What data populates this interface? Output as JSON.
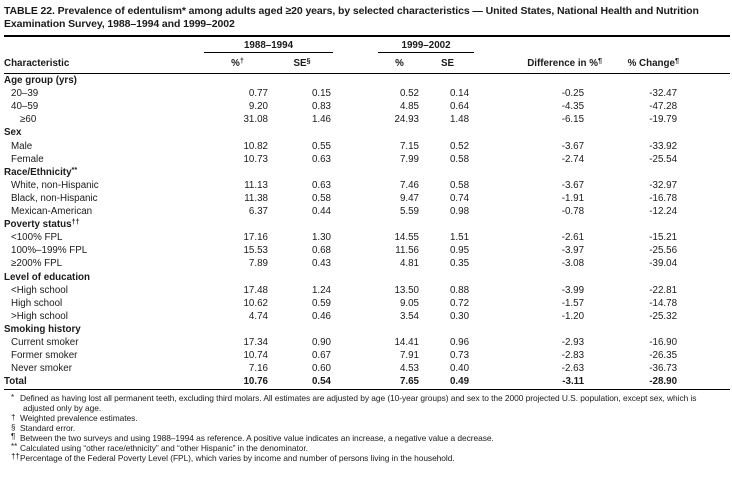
{
  "page": {
    "title": "TABLE 22. Prevalence of edentulism* among adults aged ≥20 years, by selected characteristics — United States, National Health and Nutrition Examination Survey, 1988–1994 and 1999–2002"
  },
  "colors": {
    "text": "#1b1b1b",
    "rules": "#000000",
    "background": "#ffffff"
  },
  "table": {
    "characteristic_header": "Characteristic",
    "col_groups": [
      {
        "label": "1988–1994"
      },
      {
        "label": "1999–2002"
      }
    ],
    "sub_headers": [
      {
        "text": "%",
        "sup": "†"
      },
      {
        "text": "SE",
        "sup": "§"
      },
      {
        "text": "%",
        "sup": ""
      },
      {
        "text": "SE",
        "sup": ""
      },
      {
        "text": "Difference in %",
        "sup": "¶"
      },
      {
        "text": "% Change",
        "sup": "¶"
      }
    ],
    "rows": [
      {
        "type": "section",
        "label": "Age group (yrs)",
        "sup": "",
        "indent": 0,
        "values": []
      },
      {
        "type": "data",
        "label": "20–39",
        "sup": "",
        "indent": 1,
        "values": [
          "0.77",
          "0.15",
          "0.52",
          "0.14",
          "-0.25",
          "-32.47"
        ]
      },
      {
        "type": "data",
        "label": "40–59",
        "sup": "",
        "indent": 1,
        "values": [
          "9.20",
          "0.83",
          "4.85",
          "0.64",
          "-4.35",
          "-47.28"
        ]
      },
      {
        "type": "data",
        "label": "≥60",
        "sup": "",
        "indent": 2,
        "values": [
          "31.08",
          "1.46",
          "24.93",
          "1.48",
          "-6.15",
          "-19.79"
        ]
      },
      {
        "type": "section",
        "label": "Sex",
        "sup": "",
        "indent": 0,
        "values": []
      },
      {
        "type": "data",
        "label": "Male",
        "sup": "",
        "indent": 1,
        "values": [
          "10.82",
          "0.55",
          "7.15",
          "0.52",
          "-3.67",
          "-33.92"
        ]
      },
      {
        "type": "data",
        "label": "Female",
        "sup": "",
        "indent": 1,
        "values": [
          "10.73",
          "0.63",
          "7.99",
          "0.58",
          "-2.74",
          "-25.54"
        ]
      },
      {
        "type": "section",
        "label": "Race/Ethnicity",
        "sup": "**",
        "indent": 0,
        "values": []
      },
      {
        "type": "data",
        "label": "White, non-Hispanic",
        "sup": "",
        "indent": 1,
        "values": [
          "11.13",
          "0.63",
          "7.46",
          "0.58",
          "-3.67",
          "-32.97"
        ]
      },
      {
        "type": "data",
        "label": "Black, non-Hispanic",
        "sup": "",
        "indent": 1,
        "values": [
          "11.38",
          "0.58",
          "9.47",
          "0.74",
          "-1.91",
          "-16.78"
        ]
      },
      {
        "type": "data",
        "label": "Mexican-American",
        "sup": "",
        "indent": 1,
        "values": [
          "6.37",
          "0.44",
          "5.59",
          "0.98",
          "-0.78",
          "-12.24"
        ]
      },
      {
        "type": "section",
        "label": "Poverty status",
        "sup": "††",
        "indent": 0,
        "values": []
      },
      {
        "type": "data",
        "label": "<100% FPL",
        "sup": "",
        "indent": 1,
        "values": [
          "17.16",
          "1.30",
          "14.55",
          "1.51",
          "-2.61",
          "-15.21"
        ]
      },
      {
        "type": "data",
        "label": "100%–199% FPL",
        "sup": "",
        "indent": 1,
        "values": [
          "15.53",
          "0.68",
          "11.56",
          "0.95",
          "-3.97",
          "-25.56"
        ]
      },
      {
        "type": "data",
        "label": "≥200% FPL",
        "sup": "",
        "indent": 1,
        "values": [
          "7.89",
          "0.43",
          "4.81",
          "0.35",
          "-3.08",
          "-39.04"
        ]
      },
      {
        "type": "section",
        "label": "Level of education",
        "sup": "",
        "indent": 0,
        "values": []
      },
      {
        "type": "data",
        "label": "<High school",
        "sup": "",
        "indent": 1,
        "values": [
          "17.48",
          "1.24",
          "13.50",
          "0.88",
          "-3.99",
          "-22.81"
        ]
      },
      {
        "type": "data",
        "label": "High school",
        "sup": "",
        "indent": 1,
        "values": [
          "10.62",
          "0.59",
          "9.05",
          "0.72",
          "-1.57",
          "-14.78"
        ]
      },
      {
        "type": "data",
        "label": ">High school",
        "sup": "",
        "indent": 1,
        "values": [
          "4.74",
          "0.46",
          "3.54",
          "0.30",
          "-1.20",
          "-25.32"
        ]
      },
      {
        "type": "section",
        "label": "Smoking history",
        "sup": "",
        "indent": 0,
        "values": []
      },
      {
        "type": "data",
        "label": "Current smoker",
        "sup": "",
        "indent": 1,
        "values": [
          "17.34",
          "0.90",
          "14.41",
          "0.96",
          "-2.93",
          "-16.90"
        ]
      },
      {
        "type": "data",
        "label": "Former smoker",
        "sup": "",
        "indent": 1,
        "values": [
          "10.74",
          "0.67",
          "7.91",
          "0.73",
          "-2.83",
          "-26.35"
        ]
      },
      {
        "type": "data",
        "label": "Never smoker",
        "sup": "",
        "indent": 1,
        "values": [
          "7.16",
          "0.60",
          "4.53",
          "0.40",
          "-2.63",
          "-36.73"
        ]
      },
      {
        "type": "total",
        "label": "Total",
        "sup": "",
        "indent": 0,
        "values": [
          "10.76",
          "0.54",
          "7.65",
          "0.49",
          "-3.11",
          "-28.90"
        ]
      }
    ]
  },
  "footnotes": [
    {
      "marker": "*",
      "text": "Defined as having lost all permanent teeth, excluding third molars. All estimates are adjusted by age (10-year groups) and sex to the 2000 projected U.S. population, except sex, which is adjusted only by age."
    },
    {
      "marker": "†",
      "text": "Weighted prevalence estimates."
    },
    {
      "marker": "§",
      "text": "Standard error."
    },
    {
      "marker": "¶",
      "text": "Between the two surveys and using 1988–1994 as reference. A positive value indicates an increase, a negative value a decrease."
    },
    {
      "marker": "**",
      "text": "Calculated using “other race/ethnicity” and “other Hispanic” in the denominator."
    },
    {
      "marker": "††",
      "text": "Percentage of the Federal Poverty Level (FPL), which varies by income and number of persons living in the household."
    }
  ]
}
